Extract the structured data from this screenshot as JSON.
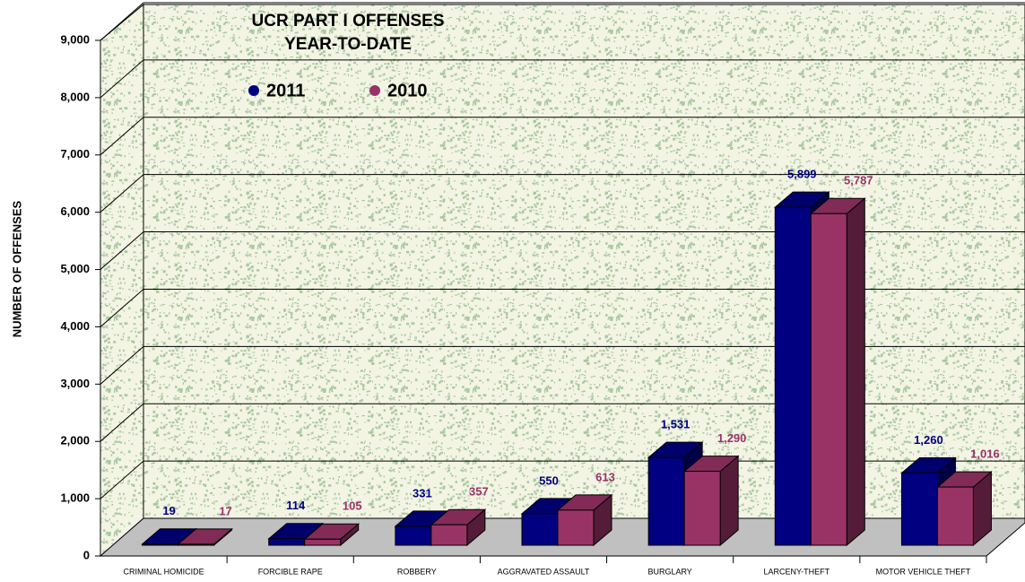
{
  "chart_data": {
    "type": "bar3d",
    "title": "UCR PART I OFFENSES",
    "subtitle": "YEAR-TO-DATE",
    "y_label": "NUMBER OF OFFENSES",
    "categories": [
      "CRIMINAL HOMICIDE",
      "FORCIBLE RAPE",
      "ROBBERY",
      "AGGRAVATED ASSAULT",
      "BURGLARY",
      "LARCENY-THEFT",
      "MOTOR VEHICLE THEFT"
    ],
    "series": [
      {
        "name": "2011",
        "color": "#000080",
        "values": [
          19,
          114,
          331,
          550,
          1531,
          5899,
          1260
        ],
        "value_labels": [
          "19",
          "114",
          "331",
          "550",
          "1,531",
          "5,899",
          "1,260"
        ]
      },
      {
        "name": "2010",
        "color": "#993366",
        "values": [
          17,
          105,
          357,
          613,
          1290,
          5787,
          1016
        ],
        "value_labels": [
          "17",
          "105",
          "357",
          "613",
          "1,290",
          "5,787",
          "1,016"
        ]
      }
    ],
    "ylim": [
      0,
      9000
    ],
    "yticks": [
      0,
      {
        "value": 1000,
        "label": "1,000"
      },
      {
        "value": 2000,
        "label": "2,000"
      },
      {
        "value": 3000,
        "label": "3,000"
      },
      {
        "value": 4000,
        "label": "4,000"
      },
      {
        "value": 5000,
        "label": "5,000"
      },
      {
        "value": 6000,
        "label": "6,000"
      },
      {
        "value": 7000,
        "label": "7,000"
      },
      {
        "value": 8000,
        "label": "8,000"
      },
      {
        "value": 9000,
        "label": "9,000"
      }
    ],
    "grid": true
  }
}
